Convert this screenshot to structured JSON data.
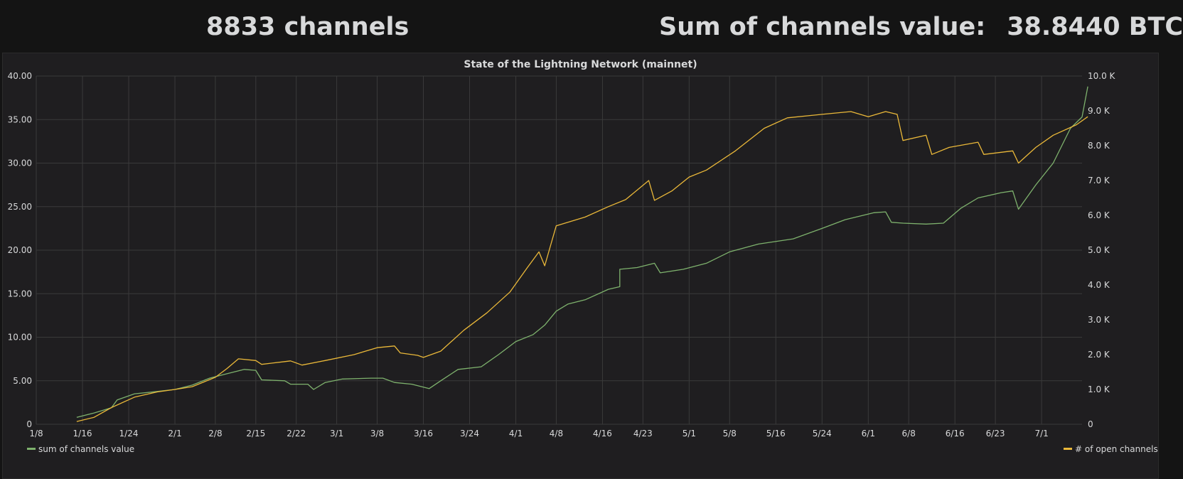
{
  "header": {
    "channels_stat": "8833 channels",
    "value_label": "Sum of channels value:",
    "value_amount": "38.8440 BTC"
  },
  "colors": {
    "background": "#141414",
    "panel": "#1f1e20",
    "grid": "#3a3a3a",
    "series_value": "#7eb26d",
    "series_channels": "#eab839"
  },
  "chart_data": {
    "type": "line",
    "title": "State of the Lightning Network (mainnet)",
    "x_ticks": [
      "1/8",
      "1/16",
      "1/24",
      "2/1",
      "2/8",
      "2/15",
      "2/22",
      "3/1",
      "3/8",
      "3/16",
      "3/24",
      "4/1",
      "4/8",
      "4/16",
      "4/23",
      "5/1",
      "5/8",
      "5/16",
      "5/24",
      "6/1",
      "6/8",
      "6/16",
      "6/23",
      "7/1"
    ],
    "x_start": "2018-01-08",
    "x_end": "2018-07-08",
    "y_left": {
      "ticks": [
        "0",
        "5.00",
        "10.00",
        "15.00",
        "20.00",
        "25.00",
        "30.00",
        "35.00",
        "40.00"
      ],
      "range": [
        0,
        40
      ]
    },
    "y_right": {
      "ticks": [
        "0",
        "1.0 K",
        "2.0 K",
        "3.0 K",
        "4.0 K",
        "5.0 K",
        "6.0 K",
        "7.0 K",
        "8.0 K",
        "9.0 K",
        "10.0 K"
      ],
      "range": [
        0,
        10000
      ]
    },
    "grid": true,
    "legend_position": "bottom",
    "series": [
      {
        "name": "sum of channels value",
        "axis": "left",
        "color": "#7eb26d",
        "points": [
          [
            "2018-01-15",
            0.8
          ],
          [
            "2018-01-18",
            1.3
          ],
          [
            "2018-01-21",
            1.9
          ],
          [
            "2018-01-22",
            2.8
          ],
          [
            "2018-01-25",
            3.5
          ],
          [
            "2018-01-28",
            3.7
          ],
          [
            "2018-02-01",
            4.0
          ],
          [
            "2018-02-04",
            4.5
          ],
          [
            "2018-02-07",
            5.3
          ],
          [
            "2018-02-10",
            5.8
          ],
          [
            "2018-02-13",
            6.3
          ],
          [
            "2018-02-15",
            6.2
          ],
          [
            "2018-02-16",
            5.1
          ],
          [
            "2018-02-20",
            5.0
          ],
          [
            "2018-02-21",
            4.6
          ],
          [
            "2018-02-24",
            4.6
          ],
          [
            "2018-02-25",
            4.0
          ],
          [
            "2018-02-27",
            4.8
          ],
          [
            "2018-03-02",
            5.2
          ],
          [
            "2018-03-07",
            5.3
          ],
          [
            "2018-03-09",
            5.3
          ],
          [
            "2018-03-11",
            4.8
          ],
          [
            "2018-03-14",
            4.6
          ],
          [
            "2018-03-17",
            4.1
          ],
          [
            "2018-03-19",
            5.0
          ],
          [
            "2018-03-22",
            6.3
          ],
          [
            "2018-03-26",
            6.6
          ],
          [
            "2018-03-29",
            8.0
          ],
          [
            "2018-04-01",
            9.5
          ],
          [
            "2018-04-04",
            10.3
          ],
          [
            "2018-04-06",
            11.4
          ],
          [
            "2018-04-08",
            13.0
          ],
          [
            "2018-04-10",
            13.8
          ],
          [
            "2018-04-13",
            14.3
          ],
          [
            "2018-04-17",
            15.5
          ],
          [
            "2018-04-19",
            15.8
          ],
          [
            "2018-04-19",
            17.8
          ],
          [
            "2018-04-22",
            18.0
          ],
          [
            "2018-04-25",
            18.5
          ],
          [
            "2018-04-26",
            17.4
          ],
          [
            "2018-04-30",
            17.8
          ],
          [
            "2018-05-04",
            18.5
          ],
          [
            "2018-05-08",
            19.8
          ],
          [
            "2018-05-13",
            20.7
          ],
          [
            "2018-05-19",
            21.3
          ],
          [
            "2018-05-24",
            22.5
          ],
          [
            "2018-05-28",
            23.5
          ],
          [
            "2018-06-02",
            24.3
          ],
          [
            "2018-06-04",
            24.4
          ],
          [
            "2018-06-05",
            23.2
          ],
          [
            "2018-06-07",
            23.1
          ],
          [
            "2018-06-11",
            23.0
          ],
          [
            "2018-06-14",
            23.1
          ],
          [
            "2018-06-17",
            24.8
          ],
          [
            "2018-06-20",
            26.0
          ],
          [
            "2018-06-24",
            26.6
          ],
          [
            "2018-06-26",
            26.8
          ],
          [
            "2018-06-27",
            24.7
          ],
          [
            "2018-06-30",
            27.5
          ],
          [
            "2018-07-03",
            30.0
          ],
          [
            "2018-07-06",
            34.0
          ],
          [
            "2018-07-08",
            35.3
          ],
          [
            "2018-07-09",
            38.8
          ]
        ]
      },
      {
        "name": "# of open channels",
        "axis": "right",
        "color": "#eab839",
        "points": [
          [
            "2018-01-15",
            80
          ],
          [
            "2018-01-18",
            200
          ],
          [
            "2018-01-21",
            480
          ],
          [
            "2018-01-25",
            780
          ],
          [
            "2018-01-29",
            930
          ],
          [
            "2018-02-01",
            1000
          ],
          [
            "2018-02-04",
            1080
          ],
          [
            "2018-02-08",
            1350
          ],
          [
            "2018-02-10",
            1600
          ],
          [
            "2018-02-12",
            1880
          ],
          [
            "2018-02-15",
            1830
          ],
          [
            "2018-02-16",
            1720
          ],
          [
            "2018-02-20",
            1800
          ],
          [
            "2018-02-21",
            1820
          ],
          [
            "2018-02-23",
            1700
          ],
          [
            "2018-02-27",
            1830
          ],
          [
            "2018-03-04",
            2000
          ],
          [
            "2018-03-08",
            2200
          ],
          [
            "2018-03-11",
            2250
          ],
          [
            "2018-03-12",
            2050
          ],
          [
            "2018-03-15",
            1980
          ],
          [
            "2018-03-16",
            1920
          ],
          [
            "2018-03-19",
            2100
          ],
          [
            "2018-03-23",
            2700
          ],
          [
            "2018-03-27",
            3200
          ],
          [
            "2018-03-31",
            3800
          ],
          [
            "2018-04-03",
            4500
          ],
          [
            "2018-04-05",
            4950
          ],
          [
            "2018-04-06",
            4550
          ],
          [
            "2018-04-08",
            5700
          ],
          [
            "2018-04-13",
            5950
          ],
          [
            "2018-04-17",
            6250
          ],
          [
            "2018-04-20",
            6450
          ],
          [
            "2018-04-24",
            7000
          ],
          [
            "2018-04-25",
            6430
          ],
          [
            "2018-04-28",
            6700
          ],
          [
            "2018-05-01",
            7100
          ],
          [
            "2018-05-04",
            7300
          ],
          [
            "2018-05-09",
            7850
          ],
          [
            "2018-05-14",
            8500
          ],
          [
            "2018-05-18",
            8800
          ],
          [
            "2018-05-24",
            8900
          ],
          [
            "2018-05-29",
            8980
          ],
          [
            "2018-06-01",
            8830
          ],
          [
            "2018-06-04",
            8980
          ],
          [
            "2018-06-06",
            8900
          ],
          [
            "2018-06-07",
            8150
          ],
          [
            "2018-06-11",
            8300
          ],
          [
            "2018-06-12",
            7750
          ],
          [
            "2018-06-15",
            7950
          ],
          [
            "2018-06-20",
            8100
          ],
          [
            "2018-06-21",
            7750
          ],
          [
            "2018-06-26",
            7850
          ],
          [
            "2018-06-27",
            7500
          ],
          [
            "2018-06-30",
            7950
          ],
          [
            "2018-07-03",
            8300
          ],
          [
            "2018-07-07",
            8600
          ],
          [
            "2018-07-09",
            8833
          ]
        ]
      }
    ]
  }
}
